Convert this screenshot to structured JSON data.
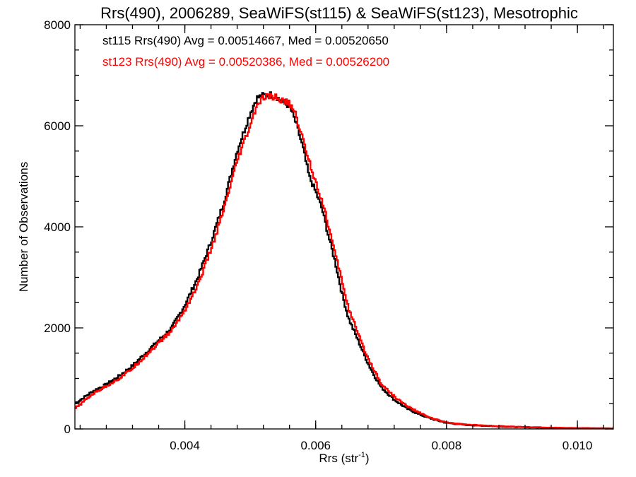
{
  "chart_data": {
    "type": "line",
    "style": "step",
    "title": "Rrs(490), 2006289, SeaWiFS(st115) & SeaWiFS(st123), Mesotrophic",
    "xlabel_main": "Rrs (str",
    "xlabel_sup": "-1",
    "xlabel_close": ")",
    "ylabel": "Number of Observations",
    "xlim": [
      0.00232,
      0.01055
    ],
    "ylim": [
      0,
      8000
    ],
    "xticks": [
      {
        "value": 0.004,
        "label": "0.004"
      },
      {
        "value": 0.006,
        "label": "0.006"
      },
      {
        "value": 0.008,
        "label": "0.008"
      },
      {
        "value": 0.01,
        "label": "0.010"
      }
    ],
    "yticks": [
      {
        "value": 0,
        "label": "0"
      },
      {
        "value": 2000,
        "label": "2000"
      },
      {
        "value": 4000,
        "label": "4000"
      },
      {
        "value": 6000,
        "label": "6000"
      },
      {
        "value": 8000,
        "label": "8000"
      }
    ],
    "grid": false,
    "legend_position": "top-left",
    "series": [
      {
        "name": "st115 Rrs(490) Avg = 0.00514667, Med = 0.00520650",
        "color": "#000000",
        "points": [
          [
            0.00232,
            500
          ],
          [
            0.0026,
            750
          ],
          [
            0.0028,
            880
          ],
          [
            0.003,
            1050
          ],
          [
            0.0032,
            1250
          ],
          [
            0.0034,
            1500
          ],
          [
            0.0036,
            1750
          ],
          [
            0.0038,
            2000
          ],
          [
            0.004,
            2450
          ],
          [
            0.0042,
            3000
          ],
          [
            0.0044,
            3700
          ],
          [
            0.0046,
            4500
          ],
          [
            0.0048,
            5500
          ],
          [
            0.005,
            6250
          ],
          [
            0.0051,
            6550
          ],
          [
            0.0052,
            6600
          ],
          [
            0.0053,
            6620
          ],
          [
            0.0054,
            6580
          ],
          [
            0.0055,
            6450
          ],
          [
            0.0056,
            6400
          ],
          [
            0.0057,
            6050
          ],
          [
            0.0058,
            5600
          ],
          [
            0.0059,
            5000
          ],
          [
            0.006,
            4700
          ],
          [
            0.0061,
            4350
          ],
          [
            0.0062,
            3800
          ],
          [
            0.0063,
            3300
          ],
          [
            0.0064,
            2700
          ],
          [
            0.0065,
            2200
          ],
          [
            0.0066,
            1900
          ],
          [
            0.0067,
            1600
          ],
          [
            0.0068,
            1300
          ],
          [
            0.0069,
            1050
          ],
          [
            0.007,
            830
          ],
          [
            0.0072,
            580
          ],
          [
            0.0074,
            400
          ],
          [
            0.0076,
            280
          ],
          [
            0.0078,
            190
          ],
          [
            0.008,
            120
          ],
          [
            0.0083,
            80
          ],
          [
            0.0086,
            60
          ],
          [
            0.009,
            40
          ],
          [
            0.0095,
            25
          ],
          [
            0.01,
            15
          ],
          [
            0.01055,
            10
          ]
        ]
      },
      {
        "name": "st123 Rrs(490) Avg = 0.00520386, Med = 0.00526200",
        "color": "#ff0000",
        "points": [
          [
            0.00232,
            400
          ],
          [
            0.0026,
            700
          ],
          [
            0.0028,
            850
          ],
          [
            0.003,
            1000
          ],
          [
            0.0032,
            1200
          ],
          [
            0.0034,
            1450
          ],
          [
            0.0036,
            1700
          ],
          [
            0.0038,
            1950
          ],
          [
            0.004,
            2350
          ],
          [
            0.0042,
            2850
          ],
          [
            0.0044,
            3550
          ],
          [
            0.0046,
            4350
          ],
          [
            0.0048,
            5300
          ],
          [
            0.005,
            6000
          ],
          [
            0.0051,
            6400
          ],
          [
            0.0052,
            6550
          ],
          [
            0.0053,
            6580
          ],
          [
            0.0054,
            6560
          ],
          [
            0.0055,
            6480
          ],
          [
            0.0056,
            6450
          ],
          [
            0.0057,
            6200
          ],
          [
            0.0058,
            5750
          ],
          [
            0.0059,
            5300
          ],
          [
            0.006,
            4900
          ],
          [
            0.0061,
            4500
          ],
          [
            0.0062,
            4000
          ],
          [
            0.0063,
            3450
          ],
          [
            0.0064,
            2950
          ],
          [
            0.0065,
            2400
          ],
          [
            0.0066,
            2050
          ],
          [
            0.0067,
            1700
          ],
          [
            0.0068,
            1400
          ],
          [
            0.0069,
            1150
          ],
          [
            0.007,
            900
          ],
          [
            0.0072,
            640
          ],
          [
            0.0074,
            450
          ],
          [
            0.0076,
            310
          ],
          [
            0.0078,
            200
          ],
          [
            0.008,
            130
          ],
          [
            0.0083,
            85
          ],
          [
            0.0086,
            65
          ],
          [
            0.009,
            45
          ],
          [
            0.0095,
            28
          ],
          [
            0.01,
            18
          ],
          [
            0.01055,
            12
          ]
        ]
      }
    ]
  }
}
